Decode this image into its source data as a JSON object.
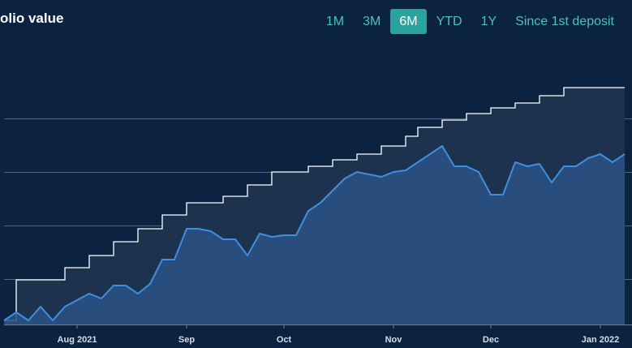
{
  "chart_data": {
    "type": "area",
    "title": "olio value",
    "range_options": [
      "1M",
      "3M",
      "6M",
      "YTD",
      "1Y",
      "Since 1st deposit"
    ],
    "selected_range": "6M",
    "categories": [
      null,
      null,
      null,
      null,
      null,
      null,
      "Aug 2021",
      null,
      null,
      null,
      null,
      null,
      null,
      null,
      null,
      "Sep",
      null,
      null,
      null,
      null,
      null,
      null,
      null,
      "Oct",
      null,
      null,
      null,
      null,
      null,
      null,
      null,
      null,
      "Nov",
      null,
      null,
      null,
      null,
      null,
      null,
      null,
      "Dec",
      null,
      null,
      null,
      null,
      null,
      null,
      null,
      null,
      "Jan 2022",
      null,
      null
    ],
    "ylim": [
      0,
      340
    ],
    "series": [
      {
        "style": "step",
        "color": "#ffffff",
        "fill": "#1c324f",
        "values": [
          5,
          55,
          55,
          55,
          55,
          70,
          70,
          85,
          85,
          102,
          102,
          118,
          118,
          135,
          135,
          150,
          150,
          150,
          158,
          158,
          172,
          172,
          188,
          188,
          188,
          195,
          195,
          203,
          203,
          210,
          210,
          220,
          220,
          232,
          243,
          243,
          252,
          252,
          260,
          260,
          267,
          267,
          273,
          273,
          282,
          282,
          292,
          292,
          292,
          292,
          292,
          292
        ]
      },
      {
        "style": "line",
        "color": "#3f8fe3",
        "fill": "#2b5485",
        "values": [
          5,
          15,
          5,
          22,
          5,
          22,
          30,
          38,
          32,
          48,
          48,
          38,
          50,
          80,
          80,
          118,
          118,
          115,
          105,
          105,
          85,
          112,
          108,
          110,
          110,
          140,
          150,
          165,
          180,
          188,
          185,
          182,
          188,
          190,
          200,
          210,
          220,
          195,
          195,
          188,
          160,
          160,
          200,
          195,
          198,
          175,
          195,
          195,
          205,
          210,
          200,
          210
        ]
      }
    ]
  }
}
